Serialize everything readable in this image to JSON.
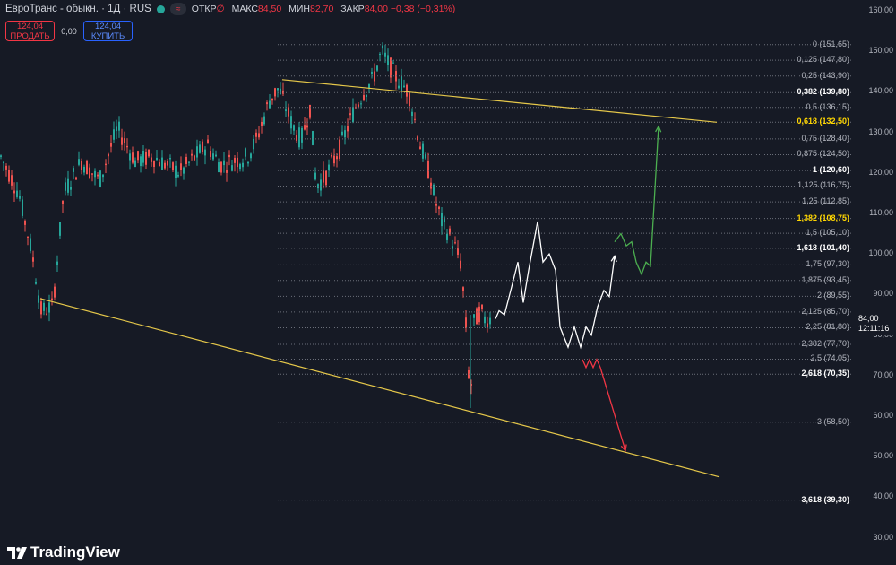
{
  "header": {
    "symbol": "ЕвроТранс - обыкн. · 1Д · RUS",
    "status_badge": "≈",
    "open_label": "ОТКР",
    "open_value": "∅",
    "high_label": "МАКС",
    "high_value": "84,50",
    "low_label": "МИН",
    "low_value": "82,70",
    "close_label": "ЗАКР",
    "close_value": "84,00 −0,38 (−0,31%)"
  },
  "trade": {
    "sell_price": "124,04",
    "sell_label": "ПРОДАТЬ",
    "spread": "0,00",
    "buy_price": "124,04",
    "buy_label": "КУПИТЬ"
  },
  "price_axis": [
    "160,00",
    "150,00",
    "140,00",
    "130,00",
    "120,00",
    "110,00",
    "100,00",
    "90,00",
    "80,00",
    "70,00",
    "60,00",
    "50,00",
    "40,00",
    "30,00"
  ],
  "current_price": {
    "price": "84,00",
    "countdown": "12:11:16"
  },
  "fib_levels": [
    {
      "label": "0 (151,65)",
      "style": "n"
    },
    {
      "label": "0,125 (147,80)",
      "style": "n"
    },
    {
      "label": "0,25 (143,90)",
      "style": "n"
    },
    {
      "label": "0,382 (139,80)",
      "style": "b"
    },
    {
      "label": "0,5 (136,15)",
      "style": "n"
    },
    {
      "label": "0,618 (132,50)",
      "style": "g"
    },
    {
      "label": "0,75 (128,40)",
      "style": "n"
    },
    {
      "label": "0,875 (124,50)",
      "style": "n"
    },
    {
      "label": "1 (120,60)",
      "style": "b"
    },
    {
      "label": "1,125 (116,75)",
      "style": "n"
    },
    {
      "label": "1,25 (112,85)",
      "style": "n"
    },
    {
      "label": "1,382 (108,75)",
      "style": "g"
    },
    {
      "label": "1,5 (105,10)",
      "style": "n"
    },
    {
      "label": "1,618 (101,40)",
      "style": "b"
    },
    {
      "label": "1,75 (97,30)",
      "style": "n"
    },
    {
      "label": "1,875 (93,45)",
      "style": "n"
    },
    {
      "label": "2 (89,55)",
      "style": "n"
    },
    {
      "label": "2,125 (85,70)",
      "style": "n"
    },
    {
      "label": "2,25 (81,80)",
      "style": "n"
    },
    {
      "label": "2,382 (77,70)",
      "style": "n"
    },
    {
      "label": "2,5 (74,05)",
      "style": "n"
    },
    {
      "label": "2,618 (70,35)",
      "style": "b"
    },
    {
      "label": "3 (58,50)",
      "style": "n"
    },
    {
      "label": "3,618 (39,30)",
      "style": "b"
    }
  ],
  "brand": {
    "name": "TradingView"
  },
  "colors": {
    "background": "#161a25",
    "up": "#26a69a",
    "down": "#ef5350",
    "trendline": "#e6c84a",
    "path_neutral": "#ffffff",
    "path_bull": "#4caf50",
    "path_bear": "#f23645",
    "fib_highlight": "#ffd600"
  },
  "chart_data": {
    "type": "candlestick",
    "y_scale": "price (RUB)",
    "ylim": [
      30,
      160
    ],
    "grid": false,
    "trendlines": [
      {
        "name": "upper",
        "from_price": 143.0,
        "to_price": 132.5
      },
      {
        "name": "lower",
        "from_price": 89.0,
        "to_price": 45.0
      }
    ],
    "projected_paths": [
      {
        "kind": "neutral",
        "prices": [
          84.0,
          86.0,
          85.0,
          91.0,
          98.0,
          88.0,
          96.0,
          108.0,
          98.0,
          100.0,
          96.0,
          82.0,
          77.0,
          82.0,
          77.0,
          82.0,
          80.0,
          87.0,
          91.0,
          89.5,
          99.5
        ]
      },
      {
        "kind": "bull",
        "prices": [
          103.0,
          105.0,
          102.0,
          103.0,
          98.0,
          95.0,
          98.0,
          97.0,
          131.5
        ]
      },
      {
        "kind": "bear",
        "prices": [
          74.0,
          72.0,
          74.0,
          72.0,
          74.0,
          72.0,
          51.5
        ]
      }
    ]
  }
}
